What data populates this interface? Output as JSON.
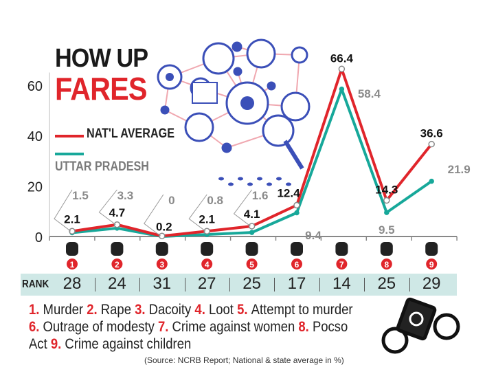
{
  "title": {
    "line1": "HOW UP",
    "line2": "FARES"
  },
  "legend": {
    "national": "NAT'L AVERAGE",
    "state": "UTTAR PRADESH"
  },
  "colors": {
    "national": "#e0252b",
    "state": "#17a89a",
    "rank_band": "#cfe8e6",
    "accent": "#e0252b"
  },
  "chart_data": {
    "type": "line",
    "categories": [
      "1",
      "2",
      "3",
      "4",
      "5",
      "6",
      "7",
      "8",
      "9"
    ],
    "series": [
      {
        "name": "NAT'L AVERAGE",
        "values": [
          2.1,
          4.7,
          0.2,
          2.1,
          4.1,
          12.4,
          66.4,
          14.3,
          36.6
        ]
      },
      {
        "name": "UTTAR PRADESH",
        "values": [
          1.5,
          3.3,
          0,
          0.8,
          1.6,
          9.4,
          58.4,
          9.5,
          21.9
        ]
      }
    ],
    "yticks": [
      0,
      20,
      40,
      60
    ],
    "ylim": [
      0,
      70
    ],
    "grid": false
  },
  "rank": {
    "label": "RANK",
    "values": [
      "28",
      "24",
      "31",
      "27",
      "25",
      "17",
      "14",
      "25",
      "29"
    ]
  },
  "crimes": [
    {
      "num": "1.",
      "name": "Murder"
    },
    {
      "num": "2.",
      "name": "Rape"
    },
    {
      "num": "3.",
      "name": "Dacoity"
    },
    {
      "num": "4.",
      "name": "Loot"
    },
    {
      "num": "5.",
      "name": "Attempt to murder"
    },
    {
      "num": "6.",
      "name": "Outrage of modesty"
    },
    {
      "num": "7.",
      "name": "Crime against women"
    },
    {
      "num": "8.",
      "name": "Pocso Act"
    },
    {
      "num": "9.",
      "name": "Crime against children"
    }
  ],
  "source": "(Source: NCRB Report; National & state average in %)",
  "icons": [
    "network-graphic-icon",
    "news-icon",
    "magnifier-eye-icon",
    "footprints-icon",
    "handcuffs-money-icon"
  ]
}
